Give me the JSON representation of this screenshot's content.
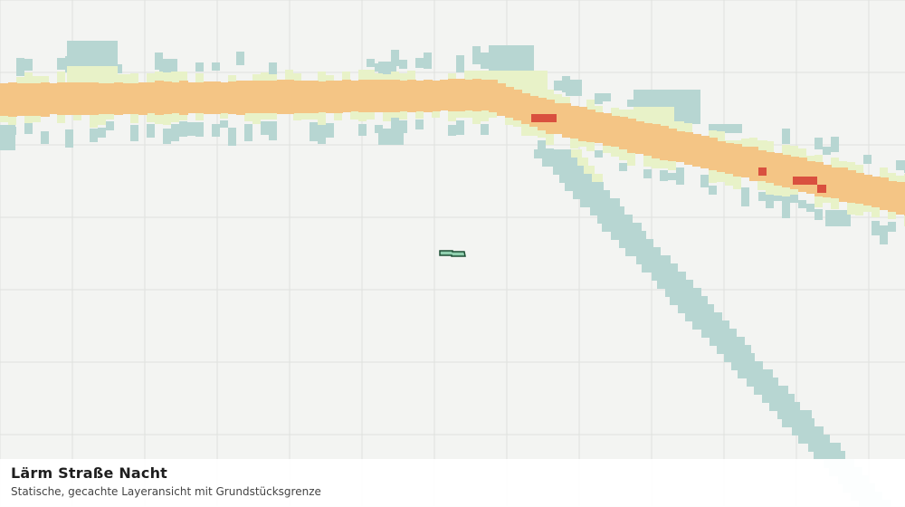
{
  "layer": {
    "title": "Lärm Straße Nacht",
    "subtitle": "Statische, gecachte Layeransicht mit Grundstücksgrenze"
  },
  "colors": {
    "background": "#f3f4f2",
    "grid": "#dfe1de",
    "level_low": "#b7d6d2",
    "level_mid": "#e8f2c8",
    "level_high": "#f4c585",
    "level_max": "#d9503f",
    "parcel_fill": "#8fcfae",
    "parcel_stroke": "#1d4f35"
  },
  "legend_levels": [
    "level_low",
    "level_mid",
    "level_high",
    "level_max"
  ],
  "map_features": [
    "noise-corridor-main-road",
    "noise-corridor-side-road",
    "parcel-boundary"
  ]
}
